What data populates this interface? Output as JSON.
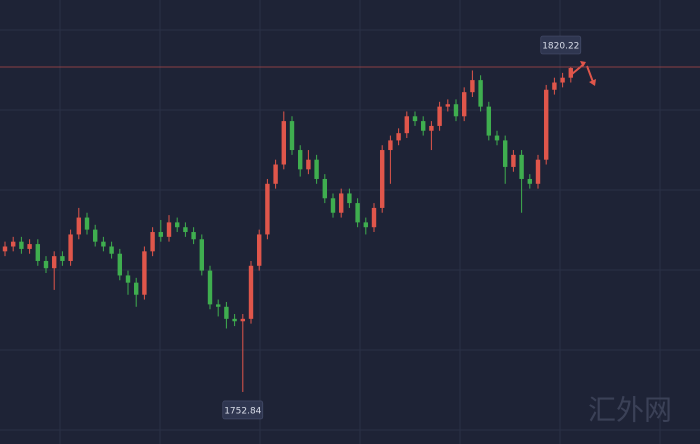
{
  "chart_data": {
    "type": "candlestick",
    "up_color": "#e0564b",
    "down_color": "#3fae4f",
    "ylim": [
      1742.05,
      1834.11
    ],
    "high_marker": 1820.22,
    "low_marker": 1752.84,
    "watermark": "汇外网",
    "open": [
      1782.0,
      1783.0,
      1784.0,
      1782.5,
      1783.5,
      1780.0,
      1778.5,
      1781.0,
      1780.0,
      1785.5,
      1789.0,
      1786.5,
      1784.0,
      1783.0,
      1781.5,
      1777.0,
      1775.5,
      1773.0,
      1782.0,
      1786.0,
      1785.0,
      1788.0,
      1787.0,
      1786.0,
      1784.5,
      1778.0,
      1771.0,
      1770.5,
      1768.0,
      1767.5,
      1768.0,
      1779.0,
      1785.5,
      1796.0,
      1800.0,
      1809.0,
      1803.0,
      1799.0,
      1801.0,
      1797.0,
      1793.0,
      1790.0,
      1794.0,
      1792.0,
      1788.0,
      1787.0,
      1791.0,
      1803.0,
      1805.0,
      1806.5,
      1810.0,
      1809.0,
      1807.0,
      1808.0,
      1812.0,
      1812.5,
      1810.0,
      1815.0,
      1817.5,
      1812.0,
      1806.0,
      1805.0,
      1799.5,
      1802.0,
      1797.0,
      1796.0,
      1801.0,
      1815.5,
      1817.0,
      1818.0
    ],
    "high": [
      1784.0,
      1785.0,
      1785.0,
      1784.5,
      1784.5,
      1781.0,
      1782.0,
      1782.0,
      1786.5,
      1791.0,
      1790.0,
      1787.5,
      1785.0,
      1784.0,
      1782.5,
      1778.0,
      1776.5,
      1783.0,
      1787.0,
      1788.5,
      1789.5,
      1789.0,
      1788.0,
      1787.0,
      1785.5,
      1779.0,
      1772.0,
      1771.5,
      1769.0,
      1769.0,
      1780.0,
      1786.5,
      1797.0,
      1801.0,
      1811.0,
      1810.0,
      1804.0,
      1803.0,
      1802.0,
      1798.0,
      1794.0,
      1795.0,
      1795.0,
      1793.0,
      1789.0,
      1792.0,
      1804.0,
      1806.0,
      1807.5,
      1811.0,
      1811.0,
      1810.0,
      1809.0,
      1813.0,
      1813.5,
      1813.5,
      1816.0,
      1819.5,
      1818.5,
      1813.0,
      1807.0,
      1806.0,
      1803.0,
      1803.0,
      1798.0,
      1802.0,
      1816.5,
      1818.0,
      1819.0,
      1820.22
    ],
    "low": [
      1781.0,
      1782.0,
      1781.5,
      1781.5,
      1779.0,
      1777.5,
      1774.0,
      1779.0,
      1779.0,
      1784.5,
      1785.5,
      1783.0,
      1782.0,
      1780.5,
      1776.0,
      1773.0,
      1770.5,
      1772.0,
      1781.0,
      1784.0,
      1784.0,
      1786.0,
      1785.0,
      1783.5,
      1777.0,
      1770.0,
      1768.5,
      1766.0,
      1766.5,
      1752.84,
      1767.0,
      1778.0,
      1784.5,
      1795.0,
      1799.0,
      1802.0,
      1797.5,
      1798.0,
      1796.0,
      1792.0,
      1789.0,
      1789.0,
      1791.0,
      1787.0,
      1785.5,
      1786.0,
      1790.0,
      1796.0,
      1804.0,
      1805.5,
      1808.0,
      1806.0,
      1803.0,
      1807.0,
      1811.0,
      1809.0,
      1809.0,
      1814.0,
      1811.0,
      1805.0,
      1804.0,
      1796.0,
      1798.5,
      1790.0,
      1795.0,
      1795.0,
      1800.0,
      1814.5,
      1816.0,
      1817.0
    ],
    "close": [
      1783.0,
      1784.0,
      1782.5,
      1783.5,
      1780.0,
      1778.5,
      1781.0,
      1780.0,
      1785.5,
      1789.0,
      1786.5,
      1784.0,
      1783.0,
      1781.5,
      1777.0,
      1775.5,
      1773.0,
      1782.0,
      1786.0,
      1785.0,
      1788.0,
      1787.0,
      1786.0,
      1784.5,
      1778.0,
      1771.0,
      1770.5,
      1768.0,
      1767.5,
      1768.0,
      1779.0,
      1785.5,
      1796.0,
      1800.0,
      1809.0,
      1803.0,
      1799.0,
      1801.0,
      1797.0,
      1793.0,
      1790.0,
      1794.0,
      1792.0,
      1788.0,
      1787.0,
      1791.0,
      1803.0,
      1805.0,
      1806.5,
      1810.0,
      1809.0,
      1807.0,
      1808.0,
      1812.0,
      1812.5,
      1810.0,
      1815.0,
      1817.5,
      1812.0,
      1806.0,
      1805.0,
      1799.5,
      1802.0,
      1797.0,
      1796.0,
      1801.0,
      1815.5,
      1817.0,
      1818.0,
      1820.0
    ]
  }
}
